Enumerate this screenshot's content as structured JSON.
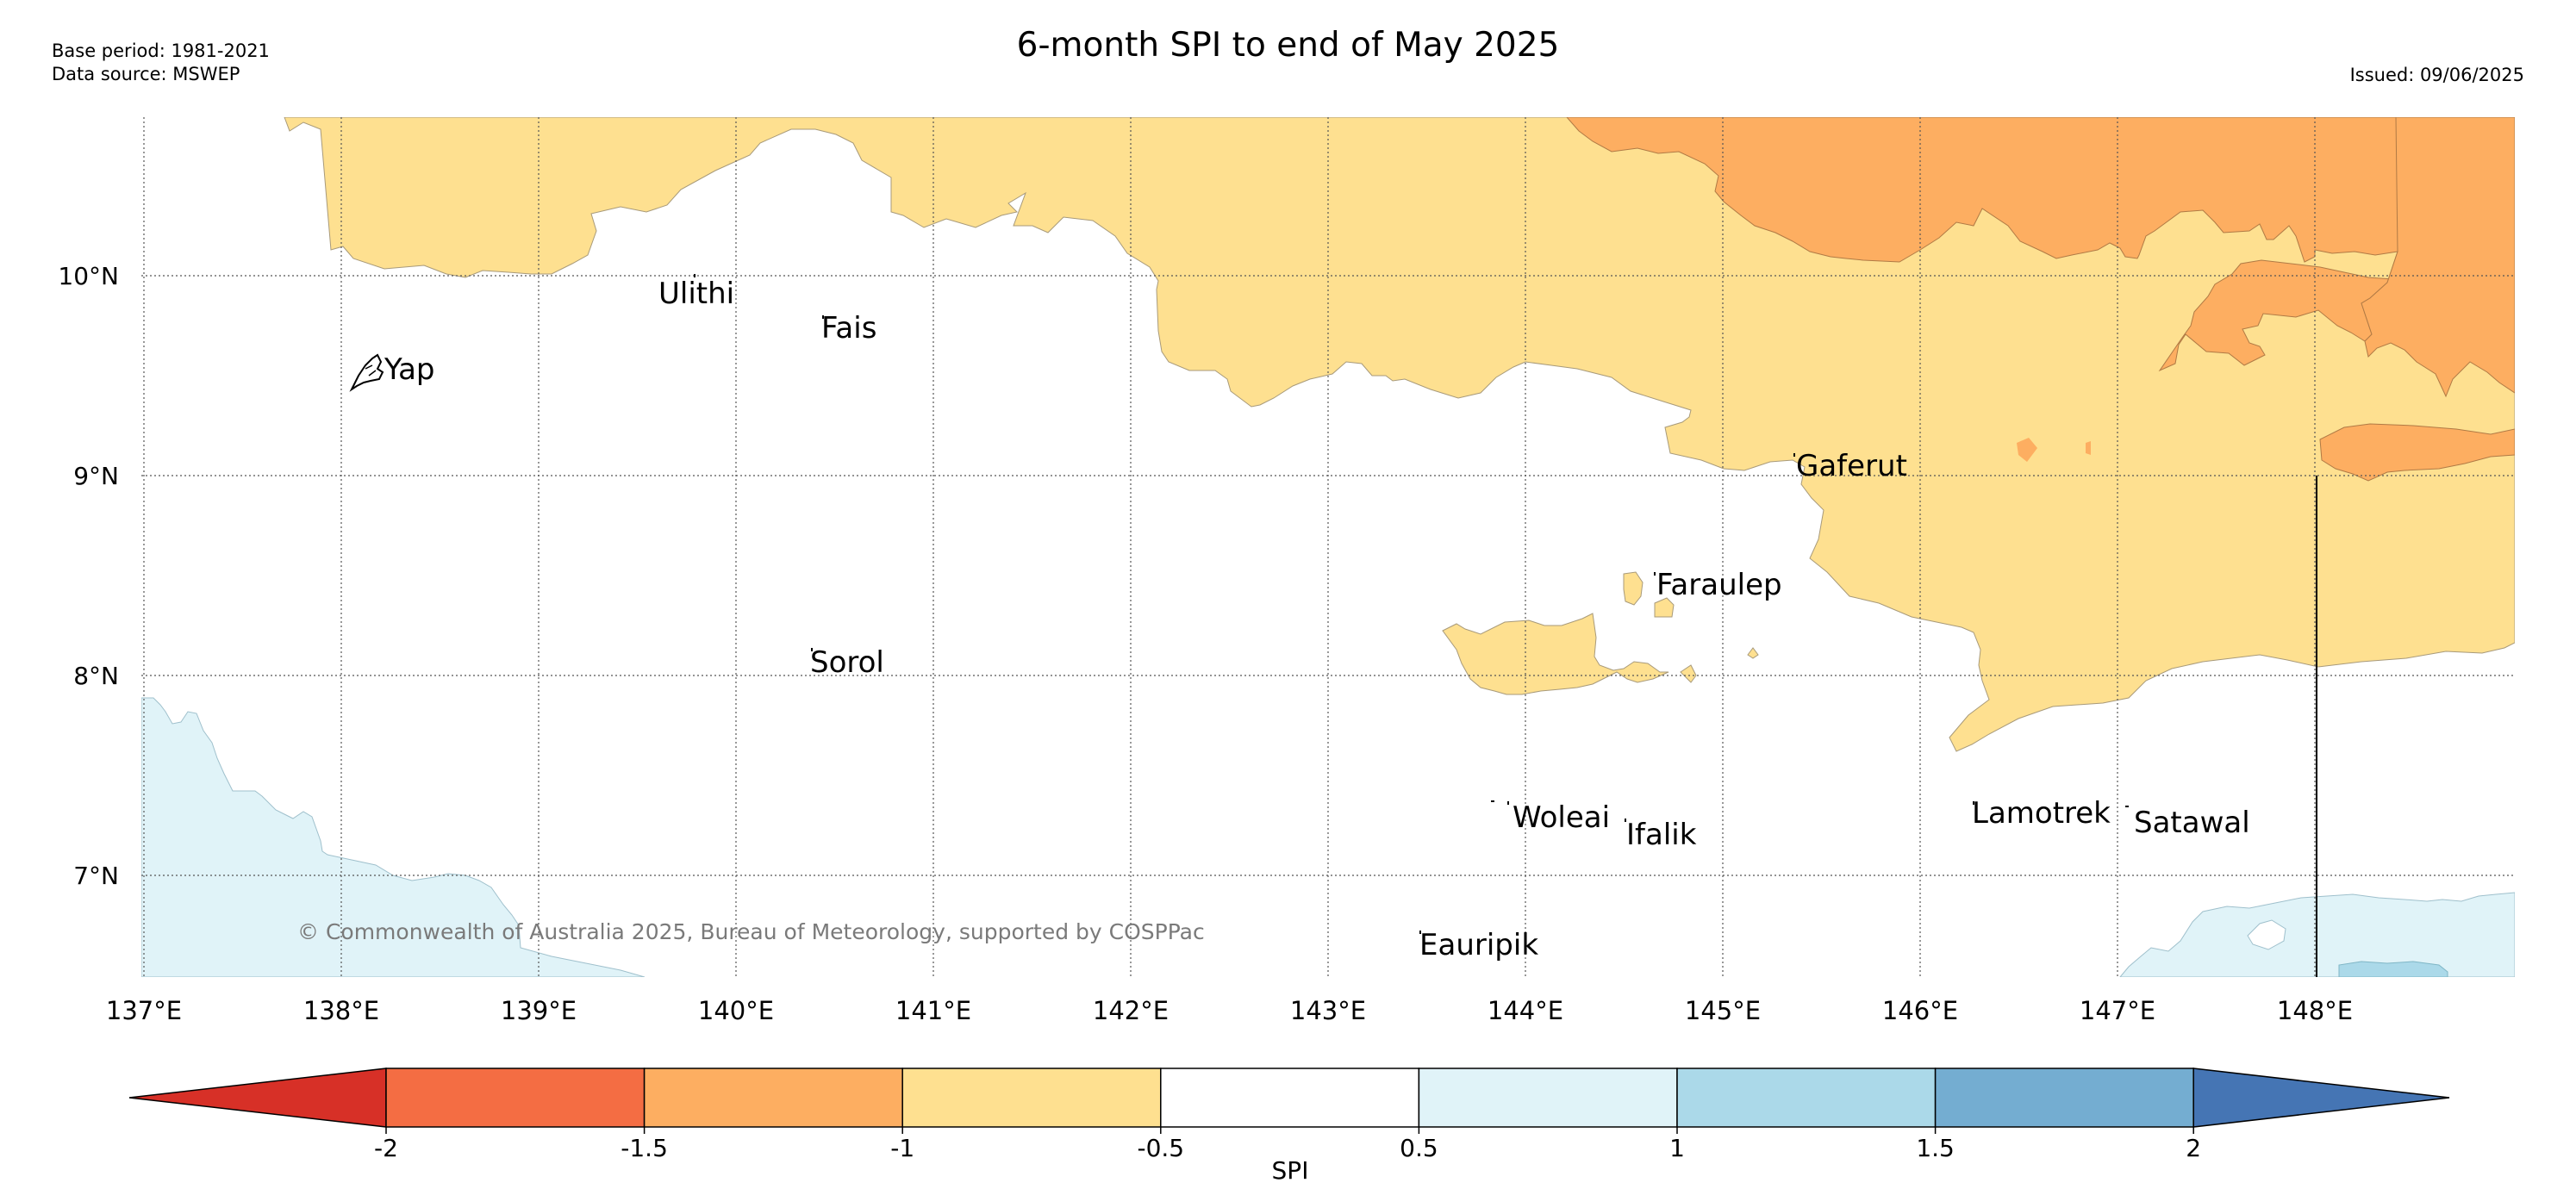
{
  "header": {
    "base_period": "Base period: 1981-2021",
    "data_source": "Data source: MSWEP",
    "title": "6-month SPI to end of May 2025",
    "issued": "Issued: 09/06/2025"
  },
  "map": {
    "lat_labels": [
      "10°N",
      "9°N",
      "8°N",
      "7°N"
    ],
    "lon_labels": [
      "137°E",
      "138°E",
      "139°E",
      "140°E",
      "141°E",
      "142°E",
      "143°E",
      "144°E",
      "145°E",
      "146°E",
      "147°E",
      "148°E"
    ],
    "places": [
      "Ulithi",
      "Fais",
      "Yap",
      "Gaferut",
      "Faraulep",
      "Sorol",
      "Woleai",
      "Ifalik",
      "Lamotrek",
      "Satawal",
      "Eauripik"
    ],
    "copyright": "© Commonwealth of Australia 2025, Bureau of Meteorology, supported by COSPPac",
    "category_colors": {
      "below_-2": "#d73027",
      "-2_to_-1.5": "#f46d43",
      "-1.5_to_-1": "#fdae61",
      "-1_to_-0.5": "#fee090",
      "-0.5_to_0.5": "#ffffff",
      "0.5_to_1": "#e0f3f8",
      "1_to_1.5": "#abd9e9",
      "1.5_to_2": "#74add1",
      "above_2": "#4575b4"
    }
  },
  "colorbar": {
    "ticks": [
      "-2",
      "-1.5",
      "-1",
      "-0.5",
      "0.5",
      "1",
      "1.5",
      "2"
    ],
    "label": "SPI",
    "colors": [
      "#d73027",
      "#f46d43",
      "#fdae61",
      "#fee090",
      "#ffffff",
      "#e0f3f8",
      "#abd9e9",
      "#74add1",
      "#4575b4"
    ]
  }
}
